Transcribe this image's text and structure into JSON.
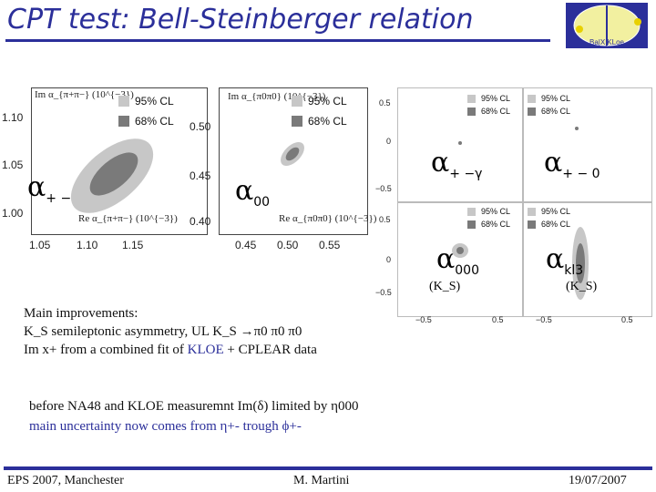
{
  "title": "CPT test: Bell-Steinberger relation",
  "colors": {
    "accent": "#2b2f9a",
    "cl95": "#c7c7c7",
    "cl68": "#7a7a7a"
  },
  "panel1": {
    "ylabel": "Im α_{π+π−} (10^{−3})",
    "xlabel": "Re α_{π+π−} (10^{−3})",
    "legend95": "95% CL",
    "legend68": "68% CL",
    "yticks": [
      "1.10",
      "1.05",
      "1.00"
    ],
    "xticks": [
      "1.05",
      "1.10",
      "1.15"
    ],
    "symbol": "α",
    "symbol_sub": "+ −"
  },
  "panel2": {
    "ylabel": "Im α_{π0π0} (10^{−3})",
    "xlabel": "Re α_{π0π0} (10^{−3})",
    "legend95": "95% CL",
    "legend68": "68% CL",
    "yticks": [
      "0.50",
      "0.45",
      "0.40"
    ],
    "xticks": [
      "0.45",
      "0.50",
      "0.55"
    ],
    "symbol": "α",
    "symbol_sub": "00"
  },
  "grid4": {
    "yticks_top": [
      "0.5",
      "0",
      "−0.5"
    ],
    "yticks_bottom": [
      "0.5",
      "0",
      "−0.5"
    ],
    "xticks": [
      "−0.5",
      "0.5",
      "−0.5",
      "0.5"
    ],
    "legend95": "95% CL",
    "legend68": "68% CL",
    "cells": [
      {
        "symbol": "α",
        "sub": "+ −γ",
        "note": ""
      },
      {
        "symbol": "α",
        "sub": "+ − 0",
        "note": ""
      },
      {
        "symbol": "α",
        "sub": "000",
        "note": "(K_S)"
      },
      {
        "symbol": "α",
        "sub": "kl3",
        "note": "(K_S)"
      }
    ]
  },
  "notes": {
    "heading": "Main improvements:",
    "line1": "K_S semileptonic asymmetry, UL K_S →π0 π0 π0",
    "line2_pre": "Im x+ from a combined fit of ",
    "line2_kloe": "KLOE",
    "line2_post": " + CPLEAR data",
    "line3": "before NA48 and KLOE measuremnt Im(δ) limited by η000",
    "line4": "main uncertainty now comes from η+- trough ϕ+-"
  },
  "footer": {
    "left": "EPS 2007, Manchester",
    "center": "M. Martini",
    "right": "19/07/2007"
  },
  "logo": {
    "text": "Ba|X|KLoe"
  }
}
